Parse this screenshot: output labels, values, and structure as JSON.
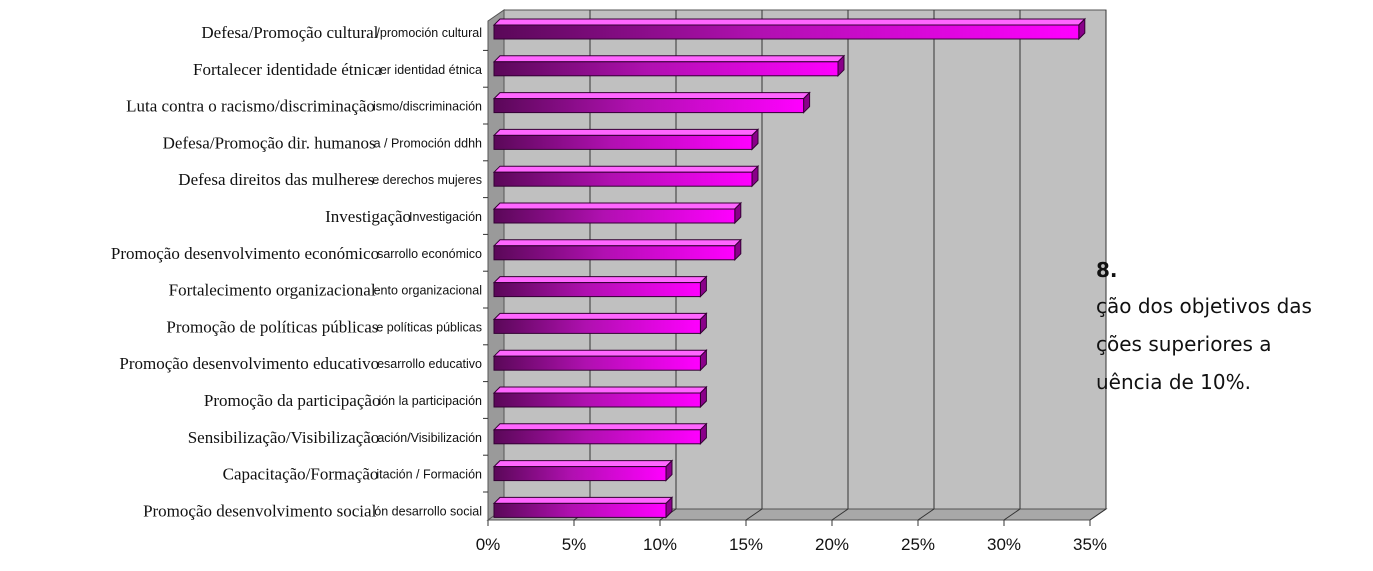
{
  "chart_data": {
    "type": "bar",
    "orientation": "horizontal",
    "categories": [
      "Defesa/Promoção cultural",
      "Fortalecer identidade étnica",
      "Luta contra o racismo/discriminação",
      "Defesa/Promoção dir. humanos",
      "Defesa direitos das mulheres",
      "Investigação",
      "Promoção desenvolvimento económico",
      "Fortalecimento organizacional",
      "Promoção de políticas públicas",
      "Promoção desenvolvimento educativo",
      "Promoção da participação",
      "Sensibilização/Visibilização",
      "Capacitação/Formação",
      "Promoção desenvolvimento social"
    ],
    "categories_es": [
      "/promoción cultural",
      "er identidad étnica",
      "ismo/discriminación",
      "a / Promoción ddhh",
      "e derechos mujeres",
      "Investigación",
      "sarrollo económico",
      "ento organizacional",
      "e políticas públicas",
      "esarrollo educativo",
      "ión la participación",
      "ación/Visibilización",
      "itación / Formación",
      "ón desarrollo social"
    ],
    "values": [
      34,
      20,
      18,
      15,
      15,
      14,
      14,
      12,
      12,
      12,
      12,
      12,
      10,
      10
    ],
    "xlim": [
      0,
      35
    ],
    "xticks": [
      "0%",
      "5%",
      "10%",
      "15%",
      "20%",
      "25%",
      "30%",
      "35%"
    ],
    "grid": true,
    "bar_color": "#ff00ff"
  },
  "caption": {
    "number": "8.",
    "lines": [
      "ção dos objetivos das",
      "ções superiores a",
      "uência de 10%."
    ]
  }
}
